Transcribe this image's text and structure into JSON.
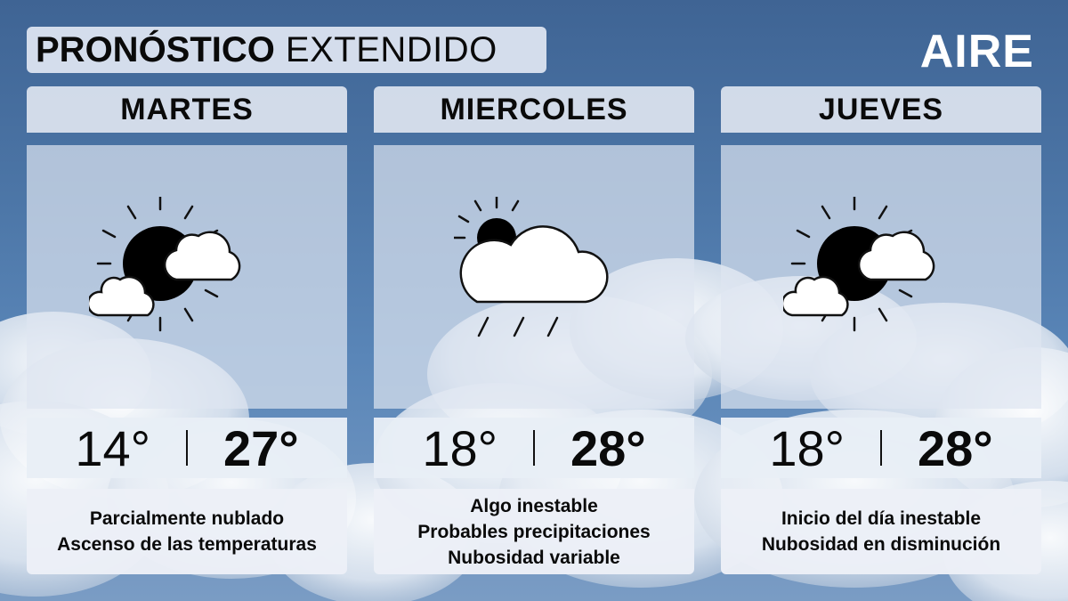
{
  "header": {
    "title_bold": "PRONÓSTICO",
    "title_light": "EXTENDIDO",
    "brand": "AIRE"
  },
  "days": [
    {
      "name": "MARTES",
      "icon": "partly-cloudy-icon",
      "min": "14°",
      "max": "27°",
      "desc": [
        "Parcialmente nublado",
        "Ascenso de las temperaturas"
      ]
    },
    {
      "name": "MIERCOLES",
      "icon": "cloud-rain-icon",
      "min": "18°",
      "max": "28°",
      "desc": [
        "Algo inestable",
        "Probables precipitaciones",
        "Nubosidad variable"
      ]
    },
    {
      "name": "JUEVES",
      "icon": "partly-cloudy-icon",
      "min": "18°",
      "max": "28°",
      "desc": [
        "Inicio del día inestable",
        "Nubosidad en disminución"
      ]
    }
  ]
}
